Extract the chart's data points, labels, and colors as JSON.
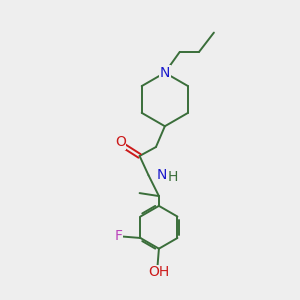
{
  "background_color": "#eeeeee",
  "bond_color": "#3a6e3a",
  "n_color": "#1a1acc",
  "o_color": "#cc1a1a",
  "f_color": "#bb44bb",
  "line_width": 1.4,
  "font_size": 10,
  "fig_w": 3.0,
  "fig_h": 3.0,
  "xlim": [
    0,
    10
  ],
  "ylim": [
    0,
    10
  ]
}
